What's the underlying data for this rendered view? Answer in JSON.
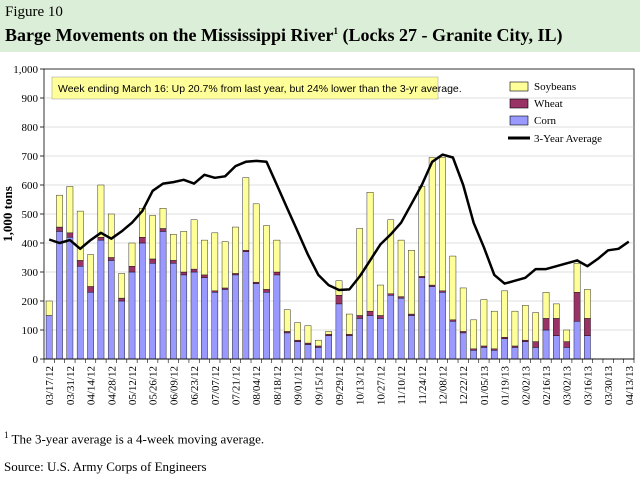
{
  "header": {
    "figure_label": "Figure 10",
    "title": "Barge Movements on the Mississippi River",
    "title_sup": "1",
    "title_rest": " (Locks 27 - Granite City, IL)"
  },
  "footnote": {
    "marker": "1",
    "text": "The 3-year average is a 4-week moving average."
  },
  "source": "Source:  U.S. Army Corps of Engineers",
  "colors": {
    "soybeans": "#ffff99",
    "wheat": "#993366",
    "corn": "#9999ff",
    "avg": "#000000",
    "header_bg": "#dbeed7",
    "note_bg": "#ffff99"
  },
  "chart_data": {
    "type": "bar",
    "stacked": true,
    "title": "Barge Movements on the Mississippi River (Locks 27 - Granite City, IL)",
    "ylabel": "1,000 tons",
    "xlabel": "",
    "ylim": [
      0,
      1000
    ],
    "yticks": [
      0,
      100,
      200,
      300,
      400,
      500,
      600,
      700,
      800,
      900,
      1000
    ],
    "ytick_labels": [
      "0",
      "100",
      "200",
      "300",
      "400",
      "500",
      "600",
      "700",
      "800",
      "900",
      "1,000"
    ],
    "annotation": "Week ending March 16:  Up 20.7% from last year, but 24% lower than the 3-yr average.",
    "xtick_labels": [
      "03/17/12",
      "03/31/12",
      "04/14/12",
      "04/28/12",
      "05/12/12",
      "05/26/12",
      "06/09/12",
      "06/23/12",
      "07/07/12",
      "07/21/12",
      "08/04/12",
      "08/18/12",
      "09/01/12",
      "09/15/12",
      "09/29/12",
      "10/13/12",
      "10/27/12",
      "11/10/12",
      "11/24/12",
      "12/08/12",
      "12/22/12",
      "01/05/13",
      "01/19/13",
      "02/02/13",
      "02/16/13",
      "03/02/13",
      "03/16/13",
      "03/30/13",
      "04/13/13"
    ],
    "weeks": 57,
    "legend": [
      "Soybeans",
      "Wheat",
      "Corn",
      "3-Year Average"
    ],
    "series": [
      {
        "name": "Corn",
        "values": [
          150,
          440,
          420,
          320,
          230,
          410,
          340,
          200,
          300,
          400,
          330,
          440,
          330,
          290,
          300,
          280,
          230,
          240,
          290,
          370,
          260,
          230,
          290,
          90,
          60,
          50,
          40,
          80,
          190,
          80,
          140,
          150,
          140,
          220,
          210,
          150,
          280,
          250,
          230,
          130,
          90,
          30,
          40,
          30,
          70,
          40,
          60,
          40,
          100,
          80,
          40,
          130,
          80,
          0,
          0,
          0,
          0
        ]
      },
      {
        "name": "Wheat",
        "values": [
          0,
          15,
          15,
          20,
          20,
          10,
          10,
          10,
          20,
          20,
          15,
          10,
          10,
          10,
          10,
          10,
          5,
          5,
          5,
          5,
          5,
          10,
          10,
          5,
          5,
          5,
          5,
          5,
          30,
          5,
          10,
          15,
          10,
          5,
          5,
          5,
          5,
          5,
          5,
          5,
          5,
          5,
          5,
          5,
          5,
          5,
          5,
          20,
          40,
          60,
          20,
          100,
          60,
          0,
          0,
          0,
          0
        ]
      },
      {
        "name": "Soybeans",
        "values": [
          50,
          110,
          160,
          170,
          110,
          180,
          150,
          85,
          80,
          100,
          150,
          70,
          90,
          140,
          170,
          120,
          200,
          160,
          160,
          250,
          270,
          220,
          110,
          75,
          60,
          60,
          20,
          10,
          50,
          70,
          300,
          410,
          105,
          255,
          195,
          220,
          310,
          440,
          460,
          220,
          150,
          100,
          160,
          130,
          160,
          120,
          120,
          100,
          90,
          50,
          40,
          100,
          100,
          0,
          0,
          0,
          0
        ]
      },
      {
        "name": "3-Year Average",
        "type": "line",
        "values": [
          412,
          400,
          410,
          380,
          410,
          435,
          415,
          440,
          470,
          510,
          580,
          605,
          610,
          618,
          605,
          635,
          625,
          630,
          665,
          680,
          683,
          680,
          600,
          520,
          440,
          360,
          290,
          255,
          238,
          240,
          285,
          340,
          395,
          430,
          470,
          535,
          600,
          680,
          705,
          695,
          600,
          470,
          385,
          290,
          260,
          270,
          280,
          310,
          310,
          320,
          330,
          340,
          320,
          345,
          375,
          380,
          405
        ]
      }
    ]
  }
}
